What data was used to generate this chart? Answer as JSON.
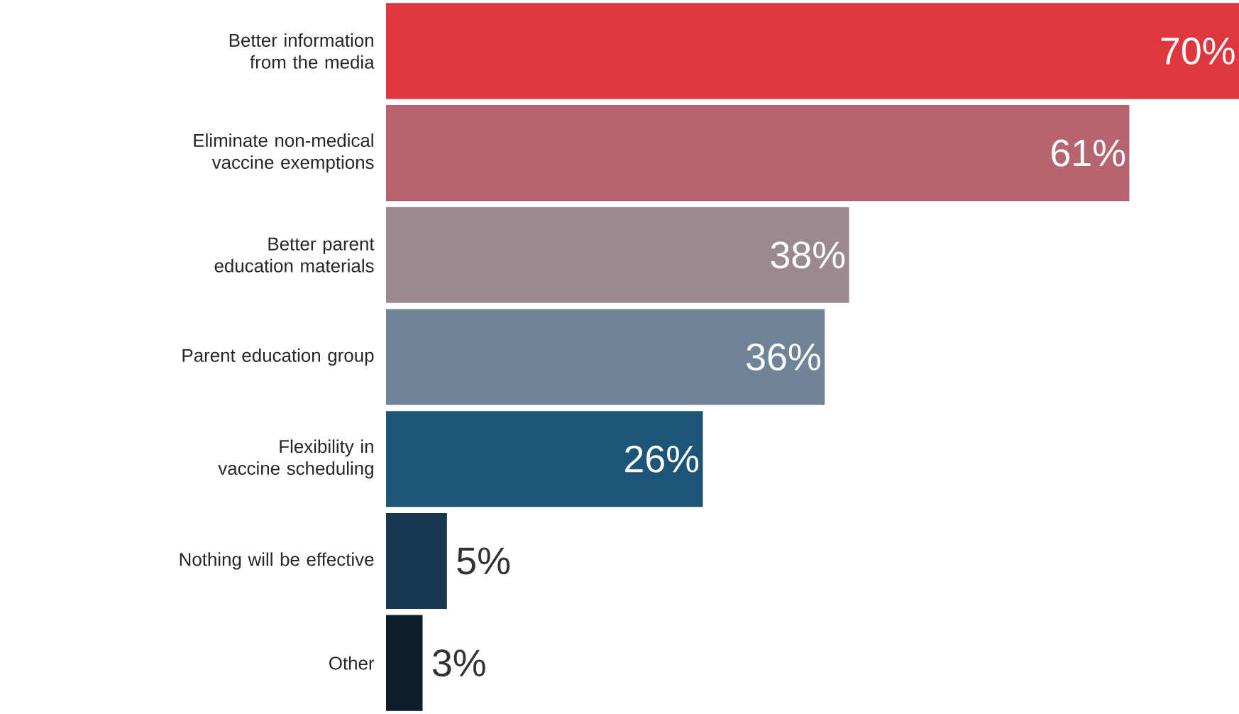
{
  "chart_data": {
    "type": "bar",
    "orientation": "horizontal",
    "categories": [
      "Better information from the media",
      "Eliminate non-medical vaccine exemptions",
      "Better parent education materials",
      "Parent education group",
      "Flexibility in vaccine scheduling",
      "Nothing will be effective",
      "Other"
    ],
    "values": [
      70,
      61,
      38,
      36,
      26,
      5,
      3
    ],
    "value_labels": [
      "70%",
      "61%",
      "38%",
      "36%",
      "26%",
      "5%",
      "3%"
    ],
    "colors": [
      "#e0363f",
      "#b66570",
      "#9a8a90",
      "#6f8497",
      "#1d5577",
      "#17384e",
      "#0f1f2a"
    ]
  }
}
